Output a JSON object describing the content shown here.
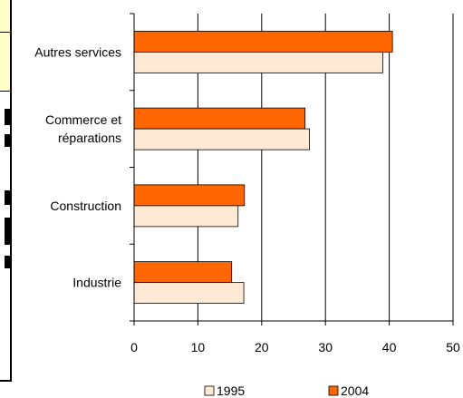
{
  "chart_data": {
    "type": "bar",
    "orientation": "horizontal",
    "categories": [
      "Autres services",
      "Commerce et réparations",
      "Construction",
      "Industrie"
    ],
    "category_lines": [
      [
        "Autres services"
      ],
      [
        "Commerce et",
        "réparations"
      ],
      [
        "Construction"
      ],
      [
        "Industrie"
      ]
    ],
    "series": [
      {
        "name": "1995",
        "values": [
          39,
          27.5,
          16.3,
          17.2
        ],
        "color": "#fde9d4"
      },
      {
        "name": "2004",
        "values": [
          40.5,
          26.8,
          17.3,
          15.3
        ],
        "color": "#ff6600"
      }
    ],
    "xlim": [
      0,
      50
    ],
    "xticks": [
      0,
      10,
      20,
      30,
      40,
      50
    ],
    "grid": true,
    "legend_position": "bottom"
  },
  "colors": {
    "gridline": "#000000",
    "left_panel_yellow": "#ffffc8"
  }
}
